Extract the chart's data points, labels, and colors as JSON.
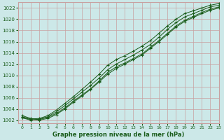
{
  "title": "Graphe pression niveau de la mer (hPa)",
  "bg_color": "#cce8e8",
  "grid_color": "#c8a0a0",
  "line_color": "#1a5c1a",
  "xlim": [
    -0.5,
    23
  ],
  "ylim": [
    1001.5,
    1023
  ],
  "yticks": [
    1002,
    1004,
    1006,
    1008,
    1010,
    1012,
    1014,
    1016,
    1018,
    1020,
    1022
  ],
  "xticks": [
    0,
    1,
    2,
    3,
    4,
    5,
    6,
    7,
    8,
    9,
    10,
    11,
    12,
    13,
    14,
    15,
    16,
    17,
    18,
    19,
    20,
    21,
    22,
    23
  ],
  "series": [
    [
      1002.8,
      1002.3,
      1002.1,
      1002.5,
      1003.2,
      1004.2,
      1005.4,
      1006.5,
      1007.6,
      1009.0,
      1010.5,
      1011.5,
      1012.2,
      1013.0,
      1013.8,
      1015.0,
      1016.2,
      1017.5,
      1018.8,
      1019.8,
      1020.5,
      1021.2,
      1021.8,
      1022.2
    ],
    [
      1002.5,
      1002.1,
      1002.0,
      1002.3,
      1003.0,
      1004.0,
      1005.2,
      1006.3,
      1007.5,
      1008.8,
      1010.2,
      1011.2,
      1012.0,
      1012.8,
      1013.6,
      1014.8,
      1016.0,
      1017.3,
      1018.6,
      1019.6,
      1020.3,
      1021.0,
      1021.6,
      1022.0
    ],
    [
      1002.6,
      1002.2,
      1002.3,
      1002.8,
      1003.8,
      1005.0,
      1006.2,
      1007.5,
      1008.8,
      1010.2,
      1011.8,
      1012.8,
      1013.5,
      1014.3,
      1015.2,
      1016.2,
      1017.5,
      1018.8,
      1020.0,
      1021.0,
      1021.5,
      1022.0,
      1022.5,
      1022.8
    ],
    [
      1002.4,
      1002.0,
      1002.2,
      1002.6,
      1003.5,
      1004.6,
      1005.8,
      1007.0,
      1008.2,
      1009.5,
      1011.0,
      1012.0,
      1012.8,
      1013.6,
      1014.5,
      1015.5,
      1016.8,
      1018.2,
      1019.4,
      1020.4,
      1021.0,
      1021.6,
      1022.2,
      1022.5
    ]
  ]
}
